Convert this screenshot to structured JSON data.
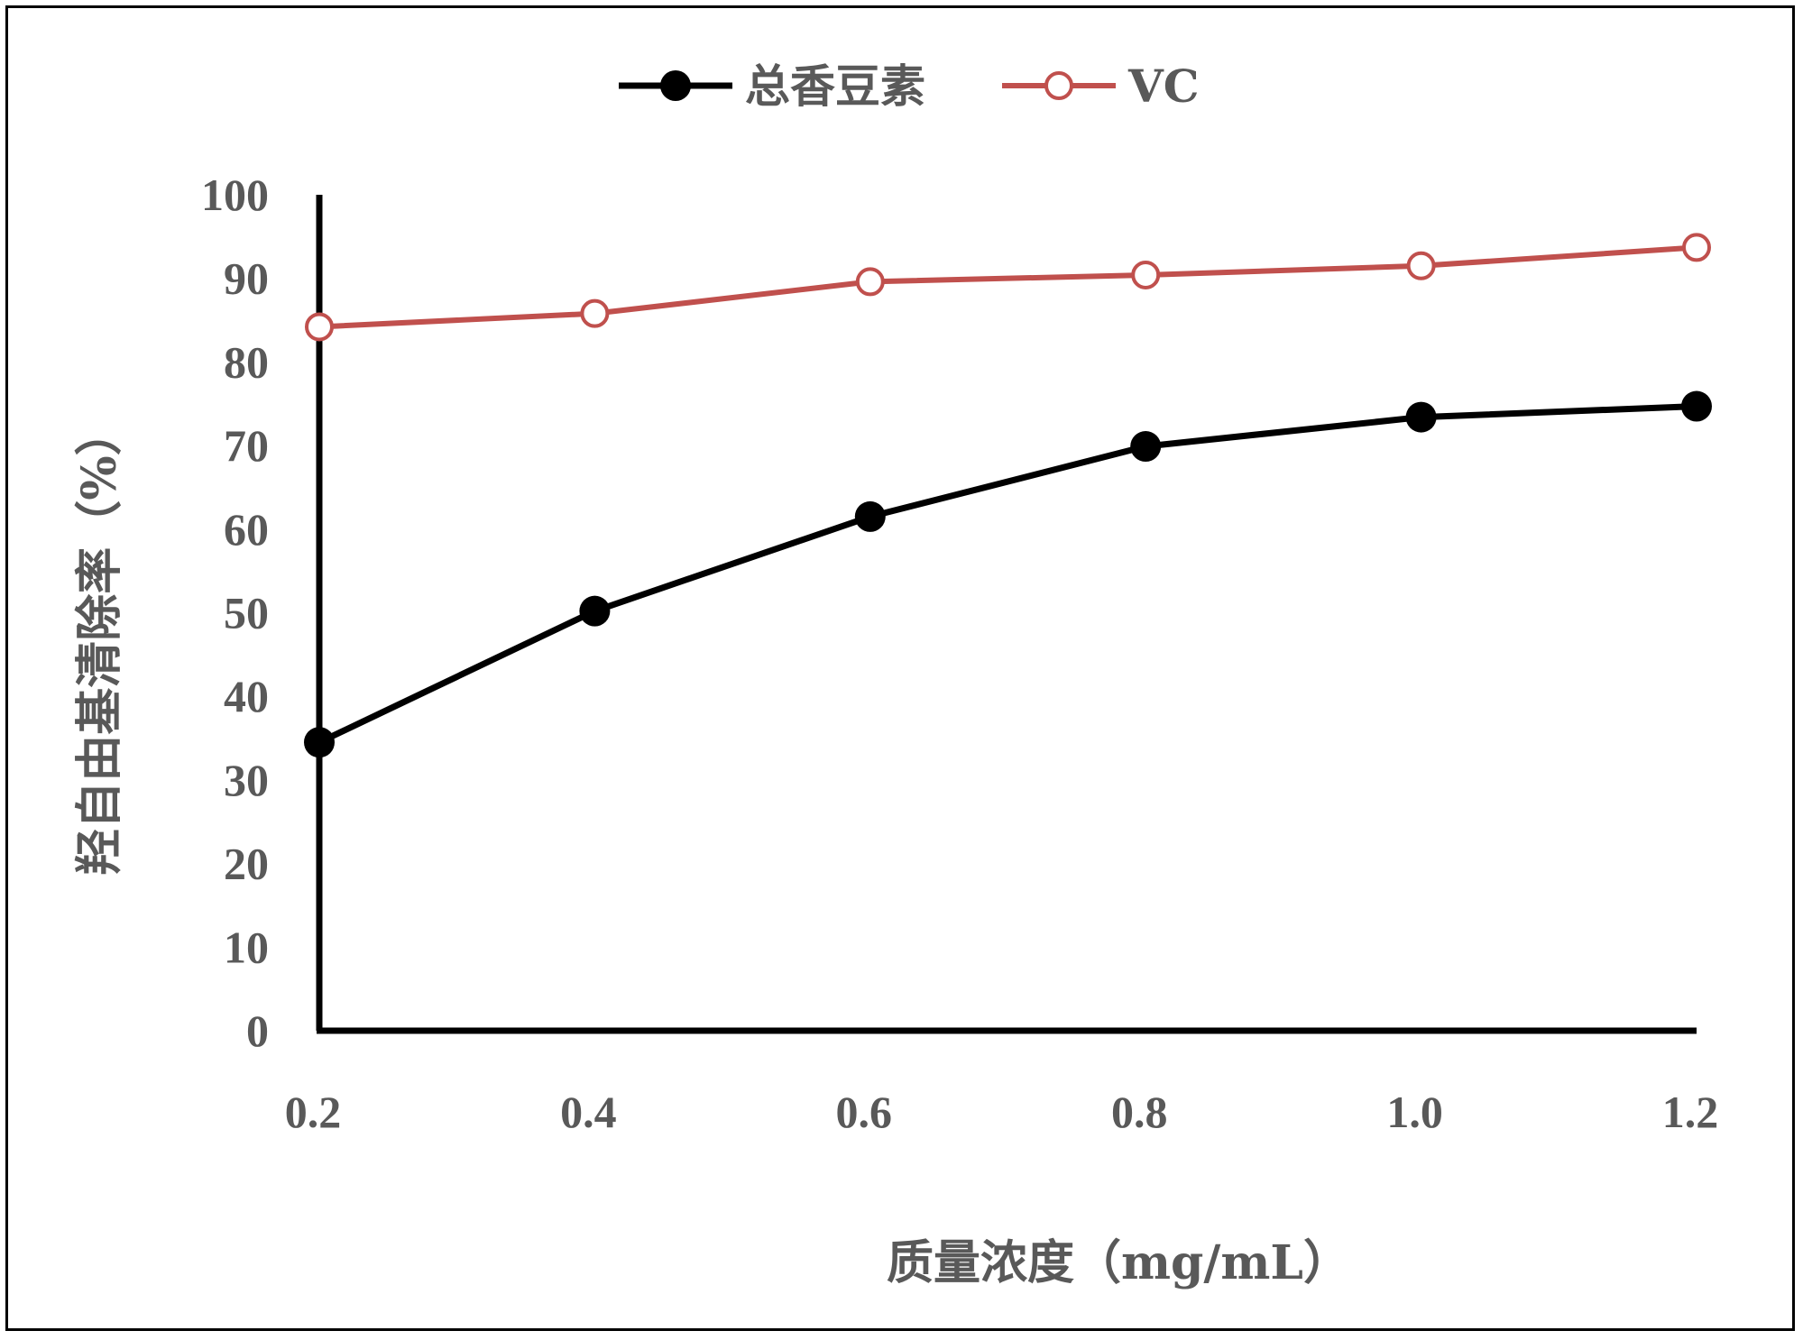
{
  "chart_data": {
    "type": "line",
    "title": "",
    "xlabel": "质量浓度（mg/mL）",
    "ylabel": "羟自由基清除率（%）",
    "categories": [
      "0.2",
      "0.4",
      "0.6",
      "0.8",
      "1.0",
      "1.2"
    ],
    "x": [
      0.2,
      0.4,
      0.6,
      0.8,
      1.0,
      1.2
    ],
    "xlim": [
      0.2,
      1.2
    ],
    "ylim": [
      0,
      100
    ],
    "yticks": [
      0,
      10,
      20,
      30,
      40,
      50,
      60,
      70,
      80,
      90,
      100
    ],
    "grid": false,
    "legend_position": "top-center",
    "series": [
      {
        "name": "总香豆素",
        "values": [
          34.5,
          50.2,
          61.5,
          69.9,
          73.4,
          74.7
        ],
        "color": "#000000",
        "marker": "filled-circle"
      },
      {
        "name": "VC",
        "values": [
          84.2,
          85.8,
          89.6,
          90.4,
          91.5,
          93.7
        ],
        "color": "#C0504D",
        "marker": "open-circle"
      }
    ]
  }
}
